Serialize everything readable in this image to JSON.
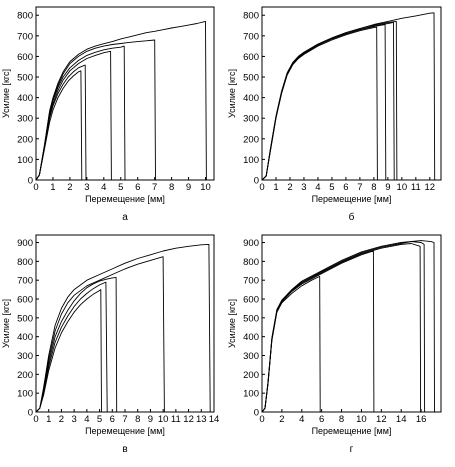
{
  "chart_data": [
    {
      "type": "line",
      "panel_label": "а",
      "xlabel": "Перемещение [мм]",
      "ylabel": "Усилие [кгс]",
      "xlim": [
        0,
        10.5
      ],
      "ylim": [
        0,
        840
      ],
      "xticks": [
        0,
        1,
        2,
        3,
        4,
        5,
        6,
        7,
        8,
        9,
        10
      ],
      "yticks": [
        0,
        100,
        200,
        300,
        400,
        500,
        600,
        700,
        800
      ],
      "grid": false,
      "series": [
        {
          "x": [
            0,
            0.2,
            0.5,
            0.8,
            1.0,
            1.3,
            1.6,
            1.9,
            2.2,
            2.5,
            2.65,
            2.7
          ],
          "y": [
            0,
            25,
            150,
            280,
            340,
            400,
            445,
            480,
            505,
            525,
            530,
            0
          ]
        },
        {
          "x": [
            0,
            0.2,
            0.5,
            0.8,
            1.0,
            1.3,
            1.6,
            1.9,
            2.2,
            2.5,
            2.8,
            2.9,
            2.95
          ],
          "y": [
            0,
            25,
            160,
            300,
            360,
            420,
            465,
            500,
            525,
            545,
            555,
            558,
            0
          ]
        },
        {
          "x": [
            0,
            0.2,
            0.5,
            0.8,
            1.0,
            1.3,
            1.6,
            2.0,
            2.5,
            3.0,
            3.5,
            4.0,
            4.4,
            4.45
          ],
          "y": [
            0,
            25,
            160,
            310,
            370,
            435,
            485,
            530,
            565,
            590,
            605,
            618,
            625,
            0
          ]
        },
        {
          "x": [
            0,
            0.2,
            0.5,
            0.8,
            1.0,
            1.3,
            1.6,
            2.0,
            2.5,
            3.0,
            3.5,
            4.0,
            4.5,
            5.0,
            5.2,
            5.25
          ],
          "y": [
            0,
            25,
            165,
            320,
            385,
            450,
            500,
            545,
            580,
            605,
            620,
            632,
            640,
            645,
            650,
            0
          ]
        },
        {
          "x": [
            0,
            0.2,
            0.5,
            0.8,
            1.0,
            1.3,
            1.6,
            2.0,
            2.5,
            3.0,
            3.5,
            4.0,
            4.5,
            5.0,
            5.5,
            6.0,
            6.5,
            7.0,
            7.05
          ],
          "y": [
            0,
            25,
            170,
            330,
            395,
            460,
            515,
            565,
            600,
            625,
            640,
            650,
            658,
            663,
            668,
            672,
            676,
            680,
            0
          ]
        },
        {
          "x": [
            0,
            0.2,
            0.5,
            0.8,
            1.0,
            1.3,
            1.6,
            2.0,
            2.5,
            3.0,
            3.5,
            4.0,
            4.5,
            5.0,
            5.5,
            6.0,
            6.5,
            7.0,
            7.5,
            8.0,
            8.5,
            9.0,
            9.5,
            9.9,
            10.0,
            10.05
          ],
          "y": [
            0,
            25,
            170,
            335,
            400,
            470,
            525,
            575,
            610,
            635,
            650,
            662,
            672,
            685,
            695,
            705,
            715,
            722,
            730,
            738,
            745,
            752,
            760,
            768,
            770,
            0
          ]
        }
      ]
    },
    {
      "type": "line",
      "panel_label": "б",
      "xlabel": "Перемещение [мм]",
      "ylabel": "Усилие [кгс]",
      "xlim": [
        0,
        12.8
      ],
      "ylim": [
        0,
        840
      ],
      "xticks": [
        0,
        1,
        2,
        3,
        4,
        5,
        6,
        7,
        8,
        9,
        10,
        11,
        12
      ],
      "yticks": [
        0,
        100,
        200,
        300,
        400,
        500,
        600,
        700,
        800
      ],
      "grid": false,
      "series": [
        {
          "x": [
            0,
            0.3,
            0.6,
            1.0,
            1.4,
            1.8,
            2.2,
            2.6,
            3.0,
            4.0,
            5.0,
            6.0,
            7.0,
            8.0,
            8.2,
            8.25
          ],
          "y": [
            0,
            20,
            140,
            300,
            420,
            510,
            560,
            590,
            610,
            650,
            680,
            705,
            725,
            740,
            742,
            0
          ]
        },
        {
          "x": [
            0,
            0.3,
            0.6,
            1.0,
            1.4,
            1.8,
            2.2,
            2.6,
            3.0,
            4.0,
            5.0,
            6.0,
            7.0,
            8.0,
            8.8,
            8.85
          ],
          "y": [
            0,
            20,
            145,
            305,
            425,
            515,
            565,
            595,
            615,
            655,
            685,
            710,
            730,
            745,
            755,
            0
          ]
        },
        {
          "x": [
            0,
            0.3,
            0.6,
            1.0,
            1.4,
            1.8,
            2.2,
            2.6,
            3.0,
            4.0,
            5.0,
            6.0,
            7.0,
            8.0,
            9.0,
            9.4,
            9.45
          ],
          "y": [
            0,
            20,
            145,
            305,
            425,
            515,
            565,
            595,
            615,
            655,
            685,
            710,
            730,
            748,
            760,
            765,
            0
          ]
        },
        {
          "x": [
            0,
            0.3,
            0.6,
            1.0,
            1.4,
            1.8,
            2.2,
            2.6,
            3.0,
            4.0,
            5.0,
            6.0,
            7.0,
            8.0,
            9.0,
            9.6,
            9.65
          ],
          "y": [
            0,
            20,
            150,
            310,
            430,
            520,
            570,
            600,
            620,
            660,
            690,
            715,
            735,
            752,
            765,
            770,
            0
          ]
        },
        {
          "x": [
            0,
            0.3,
            0.6,
            1.0,
            1.4,
            1.8,
            2.2,
            2.6,
            3.0,
            4.0,
            5.0,
            6.0,
            7.0,
            8.0,
            9.0,
            10.0,
            11.0,
            12.0,
            12.3,
            12.35
          ],
          "y": [
            0,
            20,
            150,
            310,
            430,
            520,
            570,
            600,
            620,
            660,
            690,
            715,
            735,
            755,
            770,
            785,
            797,
            810,
            812,
            0
          ]
        }
      ]
    },
    {
      "type": "line",
      "panel_label": "в",
      "xlabel": "Перемещение [мм]",
      "ylabel": "Усилие [кгс]",
      "xlim": [
        0,
        14
      ],
      "ylim": [
        0,
        940
      ],
      "xticks": [
        0,
        1,
        2,
        3,
        4,
        5,
        6,
        7,
        8,
        9,
        10,
        11,
        12,
        13,
        14
      ],
      "yticks": [
        0,
        100,
        200,
        300,
        400,
        500,
        600,
        700,
        800,
        900
      ],
      "grid": false,
      "series": [
        {
          "x": [
            0,
            0.3,
            0.6,
            1.0,
            1.5,
            2.0,
            2.5,
            3.0,
            3.5,
            4.0,
            4.5,
            5.0,
            5.1,
            5.15
          ],
          "y": [
            0,
            20,
            90,
            220,
            340,
            420,
            480,
            530,
            570,
            600,
            625,
            645,
            650,
            0
          ]
        },
        {
          "x": [
            0,
            0.3,
            0.6,
            1.0,
            1.5,
            2.0,
            2.5,
            3.0,
            3.5,
            4.0,
            4.5,
            5.0,
            5.5,
            5.6
          ],
          "y": [
            0,
            20,
            100,
            240,
            370,
            450,
            510,
            560,
            600,
            630,
            655,
            675,
            690,
            0
          ]
        },
        {
          "x": [
            0,
            0.3,
            0.6,
            1.0,
            1.5,
            2.0,
            2.5,
            3.0,
            3.5,
            4.0,
            4.5,
            5.0,
            5.5,
            6.0,
            6.3,
            6.35
          ],
          "y": [
            0,
            20,
            110,
            260,
            400,
            480,
            540,
            590,
            630,
            660,
            680,
            695,
            705,
            712,
            715,
            0
          ]
        },
        {
          "x": [
            0,
            0.3,
            0.6,
            1.0,
            1.5,
            2.0,
            2.5,
            3.0,
            4.0,
            5.0,
            6.0,
            7.0,
            8.0,
            9.0,
            10.0,
            10.1
          ],
          "y": [
            0,
            20,
            120,
            280,
            430,
            520,
            580,
            620,
            670,
            700,
            730,
            760,
            785,
            805,
            825,
            0
          ]
        },
        {
          "x": [
            0,
            0.3,
            0.6,
            1.0,
            1.5,
            2.0,
            2.5,
            3.0,
            4.0,
            5.0,
            6.0,
            7.0,
            8.0,
            9.0,
            10.0,
            11.0,
            12.0,
            13.0,
            13.6,
            13.7
          ],
          "y": [
            0,
            20,
            130,
            300,
            460,
            550,
            610,
            650,
            700,
            730,
            760,
            790,
            815,
            835,
            855,
            870,
            880,
            888,
            890,
            0
          ]
        }
      ]
    },
    {
      "type": "line",
      "panel_label": "г",
      "xlabel": "Перемещение [мм]",
      "ylabel": "Усилие [кгс]",
      "xlim": [
        0,
        18
      ],
      "ylim": [
        0,
        940
      ],
      "xticks": [
        0,
        2,
        4,
        6,
        8,
        10,
        12,
        14,
        16
      ],
      "yticks": [
        0,
        100,
        200,
        300,
        400,
        500,
        600,
        700,
        800,
        900
      ],
      "grid": false,
      "series": [
        {
          "x": [
            0,
            0.3,
            0.6,
            1.0,
            1.5,
            2.0,
            3.0,
            4.0,
            5.0,
            5.8,
            5.85
          ],
          "y": [
            0,
            20,
            150,
            380,
            530,
            580,
            630,
            670,
            700,
            720,
            0
          ]
        },
        {
          "x": [
            0,
            0.3,
            0.6,
            1.0,
            1.5,
            2.0,
            3.0,
            4.0,
            6.0,
            8.0,
            10.0,
            11.2,
            11.25
          ],
          "y": [
            0,
            20,
            150,
            385,
            535,
            585,
            640,
            680,
            735,
            790,
            835,
            855,
            0
          ]
        },
        {
          "x": [
            0,
            0.3,
            0.6,
            1.0,
            1.5,
            2.0,
            3.0,
            4.0,
            6.0,
            8.0,
            10.0,
            12.0,
            14.0,
            15.0,
            15.9,
            15.95
          ],
          "y": [
            0,
            20,
            155,
            390,
            540,
            590,
            645,
            685,
            740,
            795,
            840,
            870,
            890,
            895,
            880,
            0
          ]
        },
        {
          "x": [
            0,
            0.3,
            0.6,
            1.0,
            1.5,
            2.0,
            3.0,
            4.0,
            6.0,
            8.0,
            10.0,
            12.0,
            14.0,
            15.0,
            16.0,
            16.3,
            16.35
          ],
          "y": [
            0,
            20,
            155,
            390,
            540,
            592,
            648,
            690,
            745,
            800,
            845,
            875,
            895,
            905,
            900,
            890,
            0
          ]
        },
        {
          "x": [
            0,
            0.3,
            0.6,
            1.0,
            1.5,
            2.0,
            3.0,
            4.0,
            6.0,
            8.0,
            10.0,
            12.0,
            14.0,
            16.0,
            17.0,
            17.3,
            17.35
          ],
          "y": [
            0,
            20,
            160,
            395,
            545,
            595,
            650,
            695,
            750,
            805,
            850,
            880,
            900,
            910,
            905,
            900,
            0
          ]
        }
      ]
    }
  ]
}
